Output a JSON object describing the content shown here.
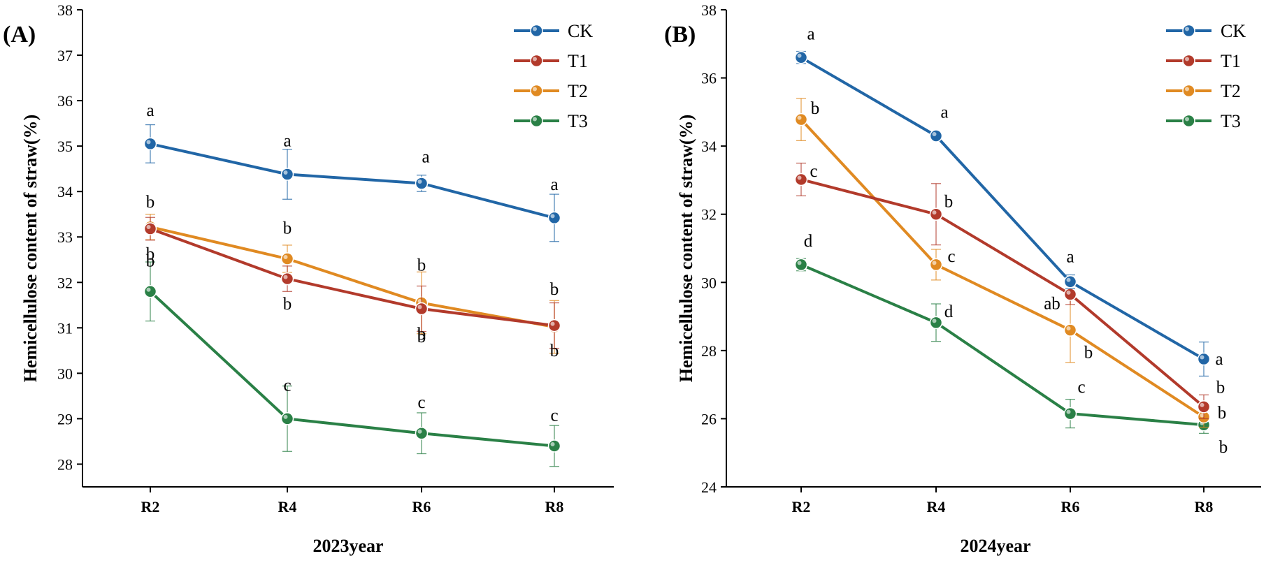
{
  "colors": {
    "CK": "#2166a6",
    "T1": "#b23a2b",
    "T2": "#e08a22",
    "T3": "#2a8046",
    "axis": "#000000"
  },
  "chart_data": [
    {
      "panel_label": "(A)",
      "type": "line",
      "xlabel": "2023year",
      "ylabel": "Hemicellulose content of straw(%)",
      "ylim": [
        27.5,
        38
      ],
      "yticks": [
        28,
        29,
        30,
        31,
        32,
        33,
        34,
        35,
        36,
        37,
        38
      ],
      "categories": [
        "R2",
        "R4",
        "R6",
        "R8"
      ],
      "legend": "top-right",
      "series": [
        {
          "name": "CK",
          "values": [
            35.05,
            34.38,
            34.18,
            33.42
          ],
          "errors": [
            0.42,
            0.55,
            0.18,
            0.52
          ],
          "letters": [
            "a",
            "a",
            "a",
            "a"
          ]
        },
        {
          "name": "T1",
          "values": [
            33.18,
            32.08,
            31.42,
            31.05
          ],
          "errors": [
            0.25,
            0.28,
            0.5,
            0.5
          ],
          "letters": [
            "b",
            "b",
            "b",
            "b"
          ]
        },
        {
          "name": "T2",
          "values": [
            33.22,
            32.52,
            31.55,
            31.02
          ],
          "errors": [
            0.28,
            0.3,
            0.68,
            0.58
          ],
          "letters": [
            "b",
            "b",
            "b",
            "b"
          ]
        },
        {
          "name": "T3",
          "values": [
            31.8,
            29.0,
            28.68,
            28.4
          ],
          "errors": [
            0.65,
            0.72,
            0.45,
            0.45
          ],
          "letters": [
            "b",
            "c",
            "c",
            "c"
          ]
        }
      ]
    },
    {
      "panel_label": "(B)",
      "type": "line",
      "xlabel": "2024year",
      "ylabel": "Hemicellulose content of straw(%)",
      "ylim": [
        24,
        38
      ],
      "yticks": [
        24,
        26,
        28,
        30,
        32,
        34,
        36,
        38
      ],
      "categories": [
        "R2",
        "R4",
        "R6",
        "R8"
      ],
      "legend": "top-right",
      "series": [
        {
          "name": "CK",
          "values": [
            36.6,
            34.3,
            30.02,
            27.75
          ],
          "errors": [
            0.18,
            0.1,
            0.2,
            0.5
          ],
          "letters": [
            "a",
            "a",
            "a",
            "a"
          ]
        },
        {
          "name": "T1",
          "values": [
            33.02,
            32.0,
            29.65,
            26.35
          ],
          "errors": [
            0.48,
            0.9,
            0.3,
            0.35
          ],
          "letters": [
            "c",
            "b",
            "",
            "b"
          ]
        },
        {
          "name": "T2",
          "values": [
            34.78,
            30.52,
            28.6,
            26.05
          ],
          "errors": [
            0.62,
            0.45,
            0.95,
            0.3
          ],
          "letters": [
            "b",
            "c",
            "ab",
            "b"
          ]
        },
        {
          "name": "T3",
          "values": [
            30.52,
            28.82,
            26.15,
            25.82
          ],
          "errors": [
            0.18,
            0.55,
            0.42,
            0.25
          ],
          "letters": [
            "d",
            "d",
            "c",
            "b"
          ]
        }
      ]
    }
  ],
  "extra_letters": [
    {
      "panel": 0,
      "series": "T1",
      "index": 2,
      "text": "b"
    },
    {
      "panel": 1,
      "series": "T2",
      "index": 2,
      "text": "b"
    }
  ]
}
